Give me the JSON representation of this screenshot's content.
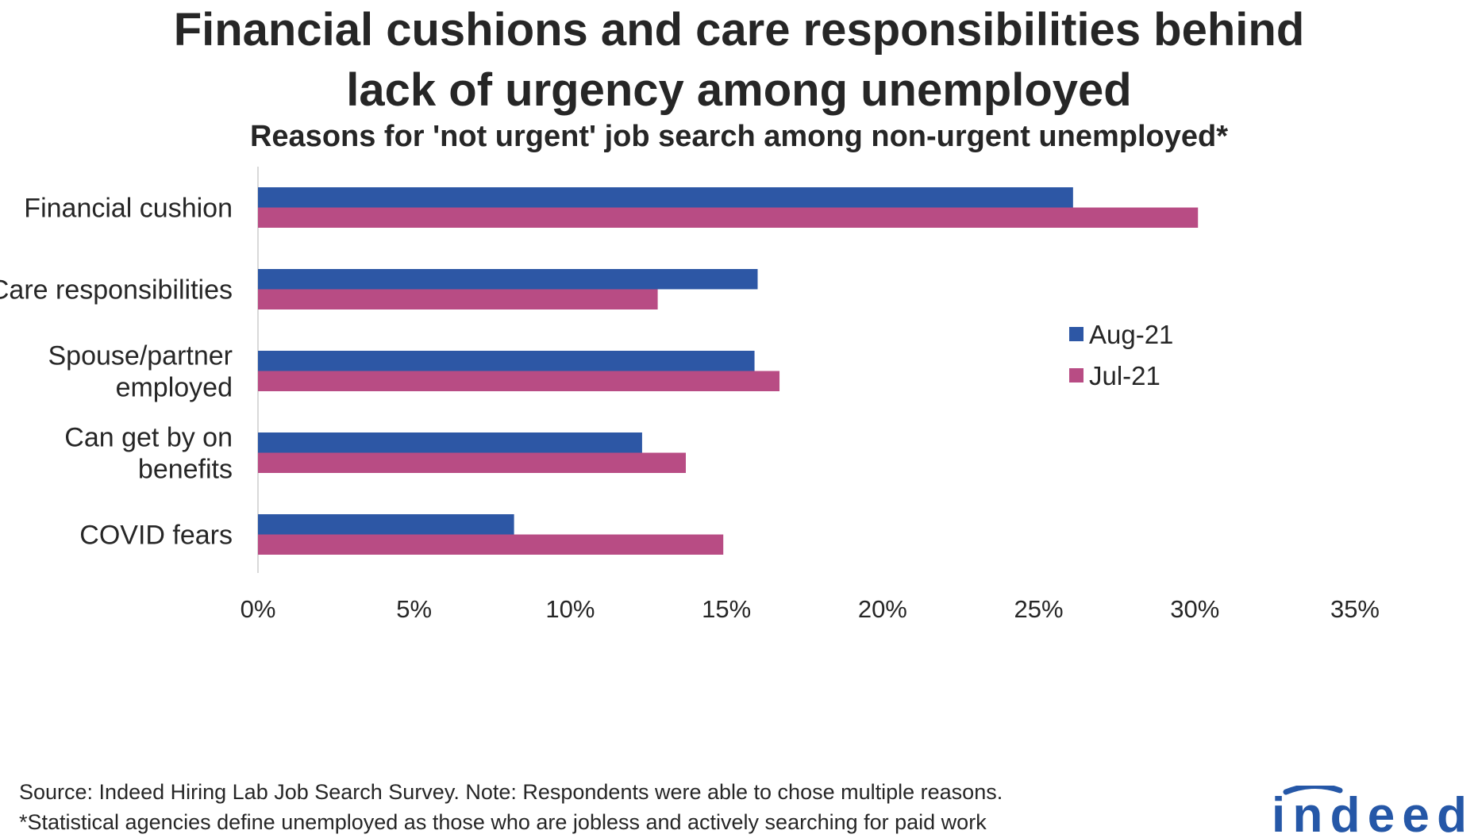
{
  "title_lines": [
    "Financial cushions and care responsibilities behind",
    "lack of urgency among unemployed"
  ],
  "subtitle": "Reasons for 'not urgent' job search among non-urgent unemployed*",
  "footnotes": {
    "source": "Source: Indeed Hiring Lab Job Search Survey. Note: Respondents were able to chose multiple reasons.",
    "note": "*Statistical agencies define unemployed as those who are jobless and actively searching for paid work"
  },
  "logo": {
    "text": "indeed",
    "color": "#2557a7"
  },
  "chart_data": {
    "type": "bar",
    "orientation": "horizontal",
    "categories": [
      [
        "Financial cushion"
      ],
      [
        "Care responsibilities"
      ],
      [
        "Spouse/partner",
        "employed"
      ],
      [
        "Can get by on",
        "benefits"
      ],
      [
        "COVID fears"
      ]
    ],
    "series": [
      {
        "name": "Aug-21",
        "color": "#2d57a5",
        "values": [
          26.1,
          16.0,
          15.9,
          12.3,
          8.2
        ]
      },
      {
        "name": "Jul-21",
        "color": "#b84c84",
        "values": [
          30.1,
          12.8,
          16.7,
          13.7,
          14.9
        ]
      }
    ],
    "xlim": [
      0,
      35
    ],
    "xticks": [
      0,
      5,
      10,
      15,
      20,
      25,
      30,
      35
    ],
    "xtick_labels": [
      "0%",
      "5%",
      "10%",
      "15%",
      "20%",
      "25%",
      "30%",
      "35%"
    ],
    "grid": false,
    "legend_position": "right"
  }
}
